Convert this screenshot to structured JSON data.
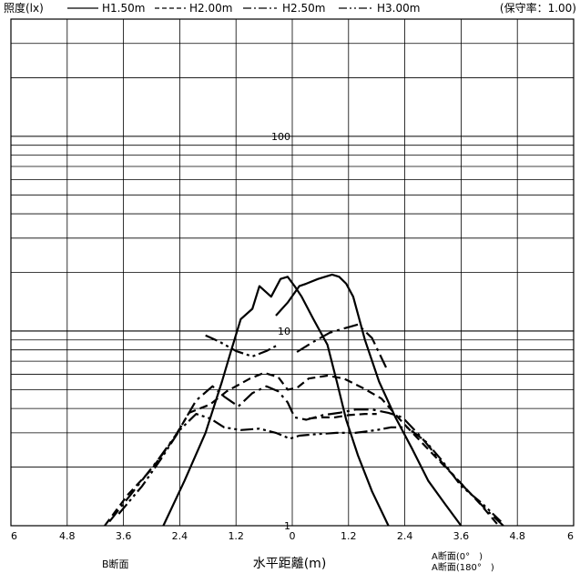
{
  "header": {
    "unit_label": "照度(lx)",
    "legend": [
      {
        "label": "H1.50m",
        "dash": "solid"
      },
      {
        "label": "H2.00m",
        "dash": "dashed"
      },
      {
        "label": "H2.50m",
        "dash": "dashdot"
      },
      {
        "label": "H3.00m",
        "dash": "dashdotdot"
      }
    ],
    "maintenance": "(保守率：1.00)"
  },
  "footer": {
    "left_label": "B断面",
    "center_label": "水平距離(m)",
    "right_label_1": "A断面(0°　)",
    "right_label_2": "A断面(180°　)"
  },
  "chart_data": {
    "type": "line",
    "title": "",
    "xlabel": "水平距離(m)",
    "ylabel": "照度(lx)",
    "xlim": [
      -6,
      6
    ],
    "ylim": [
      1,
      400
    ],
    "y_scale": "log",
    "grid": true,
    "legend_position": "top",
    "x_tick_values": [
      -6,
      -4.8,
      -3.6,
      -2.4,
      -1.2,
      0,
      1.2,
      2.4,
      3.6,
      4.8,
      6
    ],
    "x_tick_labels": [
      "6",
      "4.8",
      "3.6",
      "2.4",
      "1.2",
      "0",
      "1.2",
      "2.4",
      "3.6",
      "4.8",
      "6"
    ],
    "y_tick_values": [
      1,
      10,
      100
    ],
    "y_tick_labels": [
      "1",
      "10",
      "100"
    ],
    "series": [
      {
        "name": "H1.50m",
        "dash": "solid",
        "points": [
          [
            -2.75,
            1.0
          ],
          [
            -2.3,
            1.7
          ],
          [
            -1.85,
            3.0
          ],
          [
            -1.5,
            5.5
          ],
          [
            -1.3,
            8.0
          ],
          [
            -1.1,
            11.5
          ],
          [
            -0.85,
            13.0
          ],
          [
            -0.7,
            17.0
          ],
          [
            -0.45,
            15.0
          ],
          [
            -0.25,
            18.5
          ],
          [
            -0.1,
            19.0
          ],
          [
            0.05,
            17.0
          ],
          [
            0.2,
            15.0
          ],
          [
            0.45,
            11.5
          ],
          [
            0.75,
            8.5
          ],
          [
            0.95,
            5.5
          ],
          [
            1.15,
            3.5
          ],
          [
            1.4,
            2.3
          ],
          [
            1.7,
            1.5
          ],
          [
            2.05,
            1.0
          ]
        ]
      },
      {
        "name": "H1.50m",
        "dash": "solid",
        "points": [
          [
            -0.35,
            12.0
          ],
          [
            -0.1,
            14.0
          ],
          [
            0.15,
            17.0
          ],
          [
            0.3,
            17.5
          ],
          [
            0.55,
            18.5
          ],
          [
            0.85,
            19.5
          ],
          [
            1.0,
            19.0
          ],
          [
            1.15,
            17.5
          ],
          [
            1.3,
            15.0
          ],
          [
            1.55,
            9.0
          ],
          [
            1.85,
            5.5
          ],
          [
            2.2,
            3.6
          ],
          [
            2.55,
            2.5
          ],
          [
            2.9,
            1.7
          ],
          [
            3.25,
            1.3
          ],
          [
            3.6,
            1.0
          ]
        ]
      },
      {
        "name": "H2.00m",
        "dash": "dashed",
        "points": [
          [
            -4.0,
            1.0
          ],
          [
            -3.5,
            1.45
          ],
          [
            -3.0,
            1.95
          ],
          [
            -2.55,
            2.75
          ],
          [
            -2.2,
            3.8
          ],
          [
            -1.75,
            4.2
          ],
          [
            -1.4,
            4.9
          ],
          [
            -0.9,
            5.7
          ],
          [
            -0.6,
            6.1
          ],
          [
            -0.3,
            5.8
          ],
          [
            -0.1,
            5.0
          ],
          [
            0.1,
            5.1
          ],
          [
            0.35,
            5.7
          ],
          [
            0.75,
            5.9
          ],
          [
            1.1,
            5.7
          ],
          [
            1.5,
            5.1
          ],
          [
            1.9,
            4.5
          ],
          [
            2.3,
            3.5
          ],
          [
            2.65,
            2.85
          ],
          [
            3.1,
            2.2
          ],
          [
            3.55,
            1.7
          ],
          [
            4.0,
            1.3
          ],
          [
            4.4,
            1.0
          ]
        ]
      },
      {
        "name": "H2.00m",
        "dash": "dashed",
        "points": [
          [
            0.35,
            3.55
          ],
          [
            0.6,
            3.6
          ],
          [
            0.9,
            3.6
          ],
          [
            1.2,
            3.7
          ],
          [
            1.55,
            3.75
          ],
          [
            1.8,
            3.75
          ]
        ]
      },
      {
        "name": "H2.50m",
        "dash": "dashdot",
        "points": [
          [
            -3.9,
            1.05
          ],
          [
            -3.3,
            1.6
          ],
          [
            -2.85,
            2.2
          ],
          [
            -2.45,
            3.0
          ],
          [
            -2.05,
            4.4
          ],
          [
            -1.7,
            5.2
          ],
          [
            -1.45,
            4.6
          ],
          [
            -1.15,
            4.1
          ],
          [
            -0.85,
            4.8
          ],
          [
            -0.55,
            5.2
          ],
          [
            -0.3,
            4.9
          ],
          [
            -0.1,
            4.3
          ],
          [
            0.05,
            3.6
          ],
          [
            0.3,
            3.5
          ],
          [
            0.65,
            3.7
          ],
          [
            1.0,
            3.8
          ],
          [
            1.35,
            3.95
          ],
          [
            1.7,
            3.95
          ],
          [
            2.05,
            3.8
          ],
          [
            2.35,
            3.6
          ],
          [
            2.75,
            2.85
          ],
          [
            3.2,
            2.1
          ],
          [
            3.7,
            1.55
          ],
          [
            4.15,
            1.2
          ],
          [
            4.5,
            1.0
          ]
        ]
      },
      {
        "name": "H3.00m",
        "dash": "dashdotdot",
        "points": [
          [
            -3.7,
            1.15
          ],
          [
            -3.2,
            1.6
          ],
          [
            -2.8,
            2.2
          ],
          [
            -2.4,
            3.1
          ],
          [
            -2.05,
            3.75
          ],
          [
            -1.75,
            3.55
          ],
          [
            -1.45,
            3.2
          ],
          [
            -1.1,
            3.1
          ],
          [
            -0.7,
            3.15
          ],
          [
            -0.35,
            3.0
          ],
          [
            -0.05,
            2.8
          ],
          [
            0.15,
            2.9
          ],
          [
            0.5,
            2.95
          ],
          [
            0.95,
            3.0
          ],
          [
            1.35,
            3.0
          ],
          [
            1.8,
            3.1
          ],
          [
            2.1,
            3.2
          ],
          [
            2.45,
            3.2
          ],
          [
            2.85,
            2.7
          ],
          [
            3.2,
            2.15
          ],
          [
            3.6,
            1.6
          ],
          [
            4.05,
            1.3
          ],
          [
            4.45,
            1.05
          ]
        ]
      },
      {
        "name": "H3.00m",
        "dash": "dashdotdot",
        "points": [
          [
            -1.85,
            9.5
          ],
          [
            -1.55,
            8.8
          ],
          [
            -1.2,
            7.9
          ],
          [
            -0.85,
            7.4
          ],
          [
            -0.55,
            7.9
          ],
          [
            -0.3,
            8.5
          ]
        ]
      },
      {
        "name": "H2.50m",
        "dash": "dashdot",
        "points": [
          [
            0.1,
            7.8
          ],
          [
            0.45,
            8.8
          ],
          [
            0.8,
            9.8
          ],
          [
            1.1,
            10.3
          ],
          [
            1.4,
            10.8
          ],
          [
            1.7,
            9.2
          ],
          [
            2.0,
            6.5
          ]
        ]
      }
    ]
  }
}
